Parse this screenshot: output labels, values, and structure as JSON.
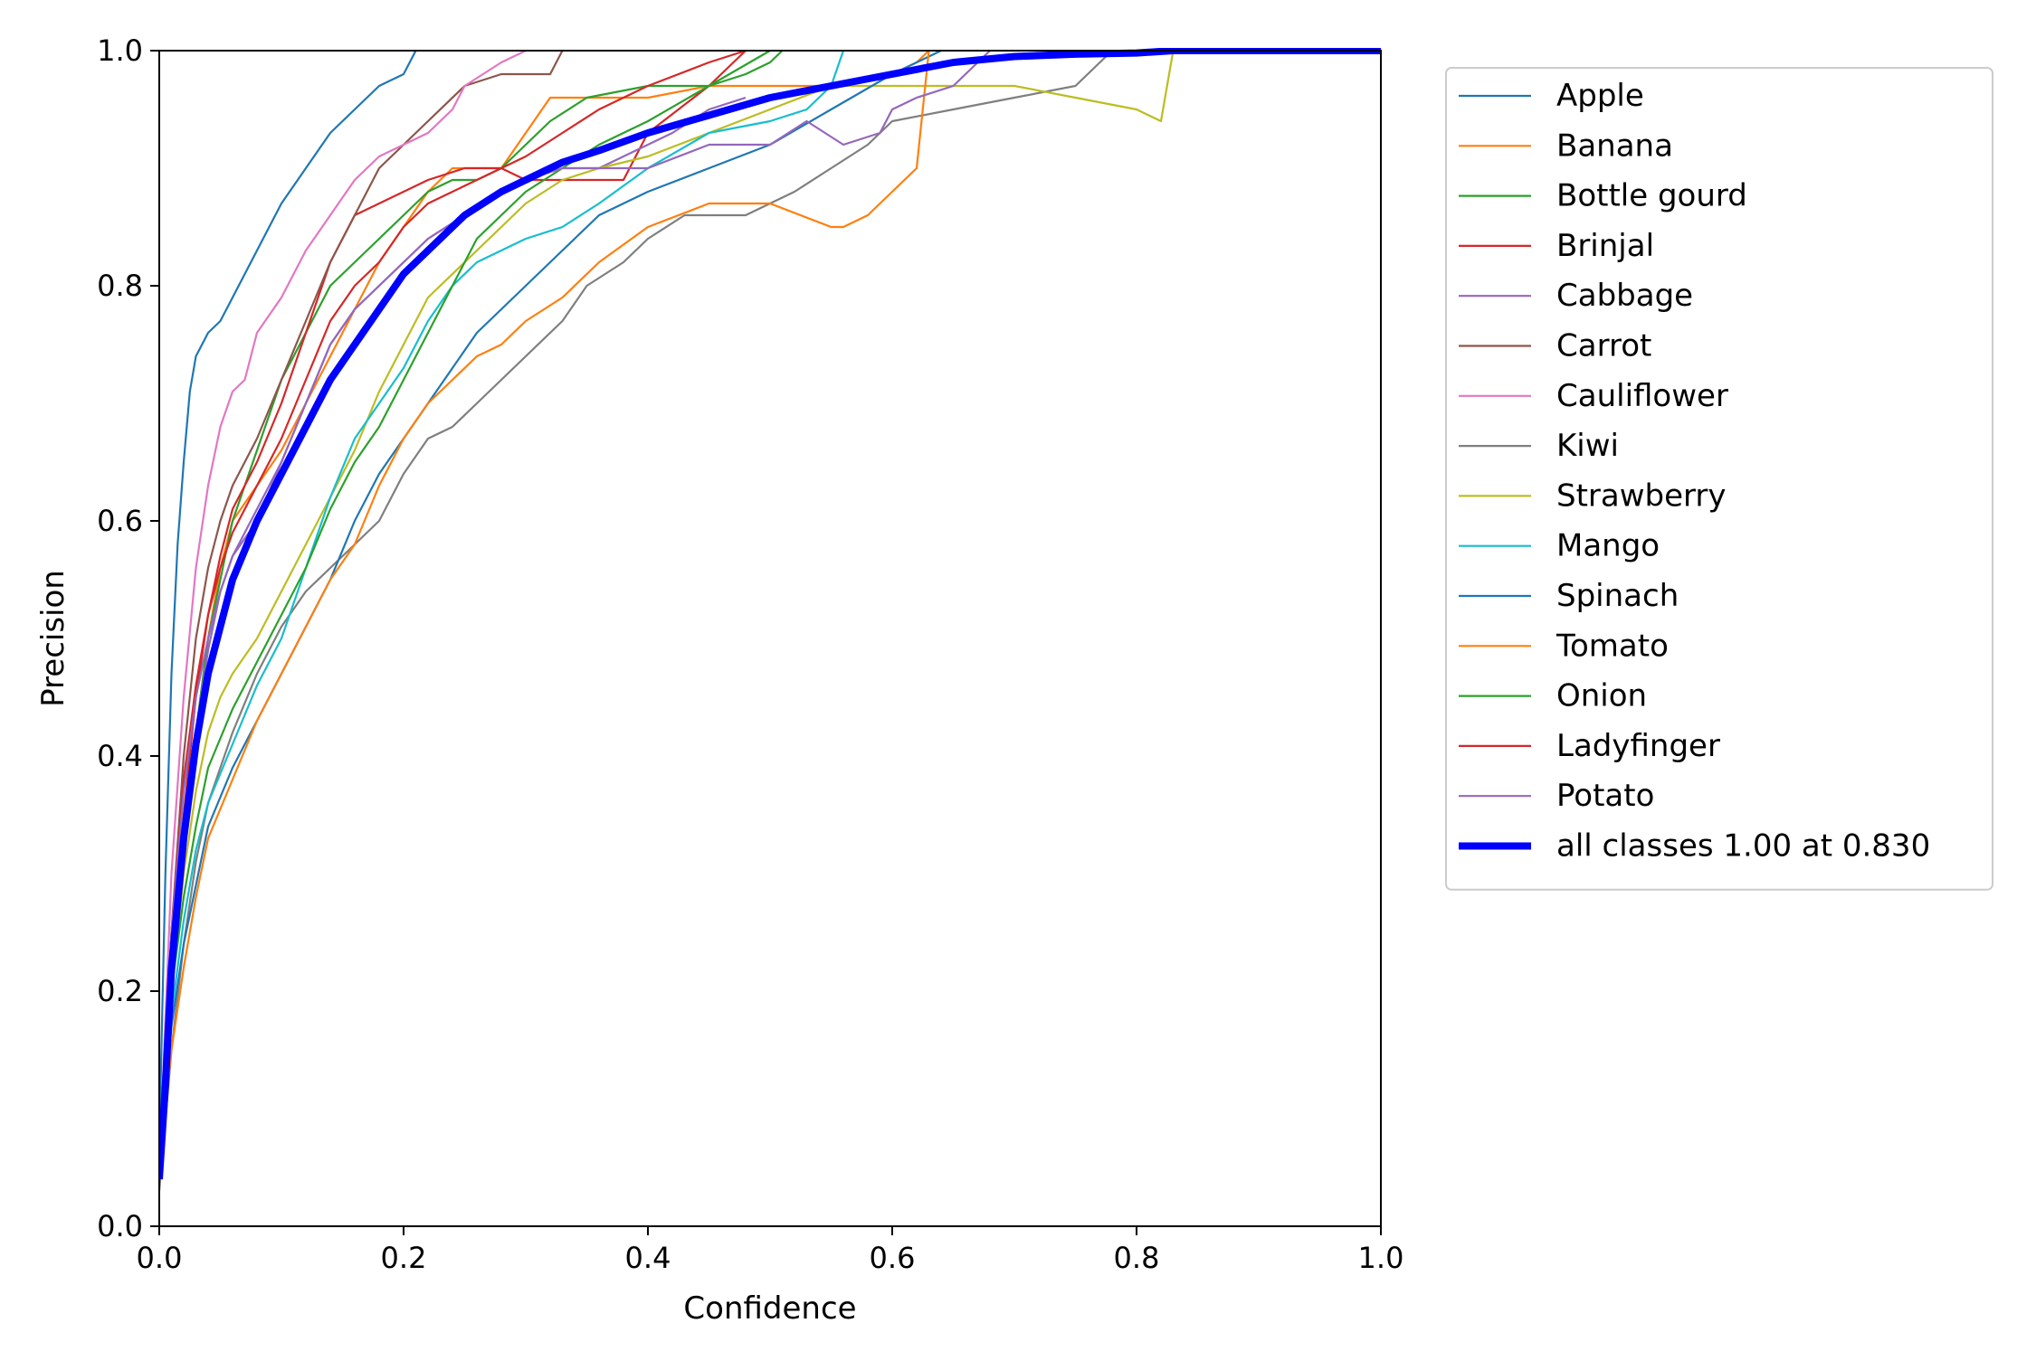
{
  "chart_data": {
    "type": "line",
    "title": "",
    "xlabel": "Confidence",
    "ylabel": "Precision",
    "xlim": [
      0,
      1
    ],
    "ylim": [
      0,
      1
    ],
    "xticks": [
      "0.0",
      "0.2",
      "0.4",
      "0.6",
      "0.8",
      "1.0"
    ],
    "yticks": [
      "0.0",
      "0.2",
      "0.4",
      "0.6",
      "0.8",
      "1.0"
    ],
    "grid": false,
    "legend_position": "outside-right-top",
    "series": [
      {
        "name": "Apple",
        "color": "#1f77b4",
        "x": [
          0,
          0.005,
          0.01,
          0.015,
          0.02,
          0.025,
          0.03,
          0.04,
          0.05,
          0.06,
          0.07,
          0.08,
          0.1,
          0.12,
          0.14,
          0.16,
          0.18,
          0.2,
          0.21
        ],
        "y": [
          0.07,
          0.3,
          0.47,
          0.58,
          0.65,
          0.71,
          0.74,
          0.76,
          0.77,
          0.79,
          0.81,
          0.83,
          0.87,
          0.9,
          0.93,
          0.95,
          0.97,
          0.98,
          1.0
        ]
      },
      {
        "name": "Banana",
        "color": "#ff7f0e",
        "x": [
          0,
          0.01,
          0.02,
          0.03,
          0.04,
          0.05,
          0.06,
          0.08,
          0.1,
          0.12,
          0.14,
          0.16,
          0.18,
          0.2,
          0.22,
          0.24,
          0.26,
          0.28,
          0.3,
          0.32,
          0.35,
          0.38,
          0.4,
          0.45,
          0.5,
          0.55,
          0.6,
          0.62,
          0.63
        ],
        "y": [
          0.05,
          0.2,
          0.33,
          0.42,
          0.5,
          0.56,
          0.6,
          0.63,
          0.66,
          0.7,
          0.74,
          0.78,
          0.82,
          0.85,
          0.88,
          0.9,
          0.9,
          0.9,
          0.93,
          0.96,
          0.96,
          0.96,
          0.96,
          0.97,
          0.97,
          0.97,
          0.98,
          0.99,
          1.0
        ]
      },
      {
        "name": "Bottle gourd",
        "color": "#2ca02c",
        "x": [
          0,
          0.01,
          0.02,
          0.03,
          0.04,
          0.05,
          0.06,
          0.08,
          0.1,
          0.12,
          0.14,
          0.16,
          0.18,
          0.2,
          0.22,
          0.24,
          0.26,
          0.28,
          0.3,
          0.32,
          0.35,
          0.4,
          0.45,
          0.48,
          0.5,
          0.51
        ],
        "y": [
          0.05,
          0.2,
          0.33,
          0.42,
          0.5,
          0.55,
          0.6,
          0.66,
          0.72,
          0.76,
          0.8,
          0.82,
          0.84,
          0.86,
          0.88,
          0.89,
          0.89,
          0.9,
          0.92,
          0.94,
          0.96,
          0.97,
          0.97,
          0.98,
          0.99,
          1.0
        ]
      },
      {
        "name": "Brinjal",
        "color": "#d62728",
        "x": [
          0,
          0.01,
          0.02,
          0.03,
          0.04,
          0.05,
          0.06,
          0.08,
          0.1,
          0.12,
          0.14,
          0.16,
          0.18,
          0.2,
          0.22,
          0.25,
          0.28,
          0.3,
          0.32,
          0.35,
          0.38,
          0.4,
          0.45,
          0.48
        ],
        "y": [
          0.05,
          0.22,
          0.35,
          0.45,
          0.52,
          0.57,
          0.61,
          0.65,
          0.7,
          0.76,
          0.82,
          0.86,
          0.87,
          0.88,
          0.89,
          0.9,
          0.9,
          0.89,
          0.89,
          0.89,
          0.89,
          0.93,
          0.97,
          1.0
        ]
      },
      {
        "name": "Cabbage",
        "color": "#9467bd",
        "x": [
          0,
          0.01,
          0.02,
          0.03,
          0.04,
          0.05,
          0.06,
          0.08,
          0.1,
          0.12,
          0.14,
          0.16,
          0.18,
          0.2,
          0.22,
          0.25,
          0.28,
          0.3,
          0.33,
          0.36,
          0.38,
          0.4,
          0.42,
          0.45,
          0.48
        ],
        "y": [
          0.05,
          0.22,
          0.33,
          0.42,
          0.49,
          0.54,
          0.57,
          0.6,
          0.65,
          0.7,
          0.75,
          0.78,
          0.8,
          0.82,
          0.84,
          0.86,
          0.88,
          0.89,
          0.9,
          0.9,
          0.91,
          0.92,
          0.93,
          0.95,
          0.96
        ]
      },
      {
        "name": "Carrot",
        "color": "#8c564b",
        "x": [
          0,
          0.01,
          0.02,
          0.03,
          0.04,
          0.05,
          0.06,
          0.08,
          0.1,
          0.12,
          0.14,
          0.16,
          0.18,
          0.2,
          0.22,
          0.25,
          0.28,
          0.31,
          0.32,
          0.33
        ],
        "y": [
          0.05,
          0.25,
          0.4,
          0.5,
          0.56,
          0.6,
          0.63,
          0.67,
          0.72,
          0.77,
          0.82,
          0.86,
          0.9,
          0.92,
          0.94,
          0.97,
          0.98,
          0.98,
          0.98,
          1.0
        ]
      },
      {
        "name": "Cauliflower",
        "color": "#e377c2",
        "x": [
          0,
          0.01,
          0.02,
          0.03,
          0.04,
          0.05,
          0.06,
          0.07,
          0.08,
          0.1,
          0.12,
          0.14,
          0.16,
          0.18,
          0.2,
          0.22,
          0.24,
          0.25,
          0.28,
          0.3
        ],
        "y": [
          0.05,
          0.3,
          0.45,
          0.56,
          0.63,
          0.68,
          0.71,
          0.72,
          0.76,
          0.79,
          0.83,
          0.86,
          0.89,
          0.91,
          0.92,
          0.93,
          0.95,
          0.97,
          0.99,
          1.0
        ]
      },
      {
        "name": "Kiwi",
        "color": "#7f7f7f",
        "x": [
          0,
          0.01,
          0.02,
          0.03,
          0.04,
          0.06,
          0.08,
          0.1,
          0.12,
          0.14,
          0.16,
          0.18,
          0.2,
          0.22,
          0.24,
          0.26,
          0.28,
          0.3,
          0.33,
          0.35,
          0.38,
          0.4,
          0.43,
          0.48,
          0.52,
          0.55,
          0.58,
          0.6,
          0.65,
          0.7,
          0.75,
          0.78
        ],
        "y": [
          0.03,
          0.15,
          0.24,
          0.31,
          0.36,
          0.42,
          0.47,
          0.51,
          0.54,
          0.56,
          0.58,
          0.6,
          0.64,
          0.67,
          0.68,
          0.7,
          0.72,
          0.74,
          0.77,
          0.8,
          0.82,
          0.84,
          0.86,
          0.86,
          0.88,
          0.9,
          0.92,
          0.94,
          0.95,
          0.96,
          0.97,
          1.0
        ]
      },
      {
        "name": "Strawberry",
        "color": "#bcbd22",
        "x": [
          0,
          0.01,
          0.02,
          0.03,
          0.04,
          0.05,
          0.06,
          0.08,
          0.1,
          0.12,
          0.14,
          0.16,
          0.18,
          0.2,
          0.22,
          0.25,
          0.28,
          0.3,
          0.33,
          0.36,
          0.4,
          0.45,
          0.5,
          0.55,
          0.6,
          0.65,
          0.7,
          0.75,
          0.8,
          0.82,
          0.83
        ],
        "y": [
          0.05,
          0.2,
          0.3,
          0.37,
          0.42,
          0.45,
          0.47,
          0.5,
          0.54,
          0.58,
          0.62,
          0.66,
          0.71,
          0.75,
          0.79,
          0.82,
          0.85,
          0.87,
          0.89,
          0.9,
          0.91,
          0.93,
          0.95,
          0.97,
          0.97,
          0.97,
          0.97,
          0.96,
          0.95,
          0.94,
          1.0
        ]
      },
      {
        "name": "Mango",
        "color": "#17becf",
        "x": [
          0,
          0.01,
          0.02,
          0.03,
          0.04,
          0.06,
          0.08,
          0.1,
          0.12,
          0.14,
          0.16,
          0.18,
          0.2,
          0.22,
          0.24,
          0.26,
          0.28,
          0.3,
          0.33,
          0.36,
          0.4,
          0.45,
          0.5,
          0.53,
          0.55,
          0.56
        ],
        "y": [
          0.05,
          0.18,
          0.26,
          0.32,
          0.36,
          0.41,
          0.46,
          0.5,
          0.56,
          0.62,
          0.67,
          0.7,
          0.73,
          0.77,
          0.8,
          0.82,
          0.83,
          0.84,
          0.85,
          0.87,
          0.9,
          0.93,
          0.94,
          0.95,
          0.97,
          1.0
        ]
      },
      {
        "name": "Spinach",
        "color": "#1f77b4",
        "x": [
          0,
          0.01,
          0.02,
          0.03,
          0.04,
          0.06,
          0.08,
          0.1,
          0.12,
          0.14,
          0.16,
          0.18,
          0.2,
          0.22,
          0.24,
          0.26,
          0.28,
          0.3,
          0.33,
          0.36,
          0.4,
          0.45,
          0.5,
          0.55,
          0.6,
          0.64
        ],
        "y": [
          0.05,
          0.17,
          0.24,
          0.29,
          0.34,
          0.39,
          0.43,
          0.47,
          0.51,
          0.55,
          0.6,
          0.64,
          0.67,
          0.7,
          0.73,
          0.76,
          0.78,
          0.8,
          0.83,
          0.86,
          0.88,
          0.9,
          0.92,
          0.95,
          0.98,
          1.0
        ]
      },
      {
        "name": "Tomato",
        "color": "#ff7f0e",
        "x": [
          0,
          0.01,
          0.02,
          0.03,
          0.04,
          0.06,
          0.08,
          0.1,
          0.12,
          0.14,
          0.16,
          0.18,
          0.2,
          0.22,
          0.24,
          0.26,
          0.28,
          0.3,
          0.33,
          0.36,
          0.4,
          0.45,
          0.5,
          0.55,
          0.56,
          0.58,
          0.6,
          0.62,
          0.63
        ],
        "y": [
          0.05,
          0.15,
          0.22,
          0.28,
          0.33,
          0.38,
          0.43,
          0.47,
          0.51,
          0.55,
          0.58,
          0.63,
          0.67,
          0.7,
          0.72,
          0.74,
          0.75,
          0.77,
          0.79,
          0.82,
          0.85,
          0.87,
          0.87,
          0.85,
          0.85,
          0.86,
          0.88,
          0.9,
          1.0
        ]
      },
      {
        "name": "Onion",
        "color": "#2ca02c",
        "x": [
          0,
          0.01,
          0.02,
          0.03,
          0.04,
          0.06,
          0.08,
          0.1,
          0.12,
          0.14,
          0.16,
          0.18,
          0.2,
          0.22,
          0.24,
          0.26,
          0.28,
          0.3,
          0.33,
          0.36,
          0.4,
          0.45,
          0.5
        ],
        "y": [
          0.05,
          0.2,
          0.28,
          0.34,
          0.39,
          0.44,
          0.48,
          0.52,
          0.56,
          0.61,
          0.65,
          0.68,
          0.72,
          0.76,
          0.8,
          0.84,
          0.86,
          0.88,
          0.9,
          0.92,
          0.94,
          0.97,
          1.0
        ]
      },
      {
        "name": "Ladyfinger",
        "color": "#d62728",
        "x": [
          0,
          0.01,
          0.02,
          0.03,
          0.04,
          0.05,
          0.06,
          0.08,
          0.1,
          0.12,
          0.14,
          0.16,
          0.18,
          0.2,
          0.22,
          0.24,
          0.26,
          0.28,
          0.3,
          0.33,
          0.36,
          0.4,
          0.45,
          0.48
        ],
        "y": [
          0.05,
          0.25,
          0.38,
          0.46,
          0.52,
          0.56,
          0.59,
          0.63,
          0.67,
          0.72,
          0.77,
          0.8,
          0.82,
          0.85,
          0.87,
          0.88,
          0.89,
          0.9,
          0.91,
          0.93,
          0.95,
          0.97,
          0.99,
          1.0
        ]
      },
      {
        "name": "Potato",
        "color": "#9467bd",
        "x": [
          0,
          0.01,
          0.02,
          0.03,
          0.04,
          0.05,
          0.06,
          0.08,
          0.1,
          0.12,
          0.14,
          0.16,
          0.18,
          0.2,
          0.22,
          0.25,
          0.28,
          0.3,
          0.33,
          0.36,
          0.4,
          0.45,
          0.5,
          0.53,
          0.56,
          0.59,
          0.6,
          0.62,
          0.65,
          0.68
        ],
        "y": [
          0.05,
          0.25,
          0.37,
          0.45,
          0.5,
          0.54,
          0.57,
          0.61,
          0.65,
          0.7,
          0.75,
          0.78,
          0.8,
          0.82,
          0.84,
          0.86,
          0.88,
          0.89,
          0.9,
          0.9,
          0.9,
          0.92,
          0.92,
          0.94,
          0.92,
          0.93,
          0.95,
          0.96,
          0.97,
          1.0
        ]
      },
      {
        "name": "all classes 1.00 at 0.830",
        "color": "#0000ff",
        "bold": true,
        "x": [
          0,
          0.005,
          0.01,
          0.02,
          0.03,
          0.04,
          0.05,
          0.06,
          0.08,
          0.1,
          0.12,
          0.14,
          0.16,
          0.18,
          0.2,
          0.22,
          0.25,
          0.28,
          0.3,
          0.33,
          0.36,
          0.4,
          0.45,
          0.5,
          0.55,
          0.6,
          0.65,
          0.7,
          0.75,
          0.8,
          0.83,
          1.0
        ],
        "y": [
          0.04,
          0.12,
          0.22,
          0.33,
          0.41,
          0.47,
          0.51,
          0.55,
          0.6,
          0.64,
          0.68,
          0.72,
          0.75,
          0.78,
          0.81,
          0.83,
          0.86,
          0.88,
          0.89,
          0.905,
          0.915,
          0.93,
          0.945,
          0.96,
          0.97,
          0.98,
          0.99,
          0.995,
          0.997,
          0.998,
          1.0,
          1.0
        ]
      }
    ]
  }
}
